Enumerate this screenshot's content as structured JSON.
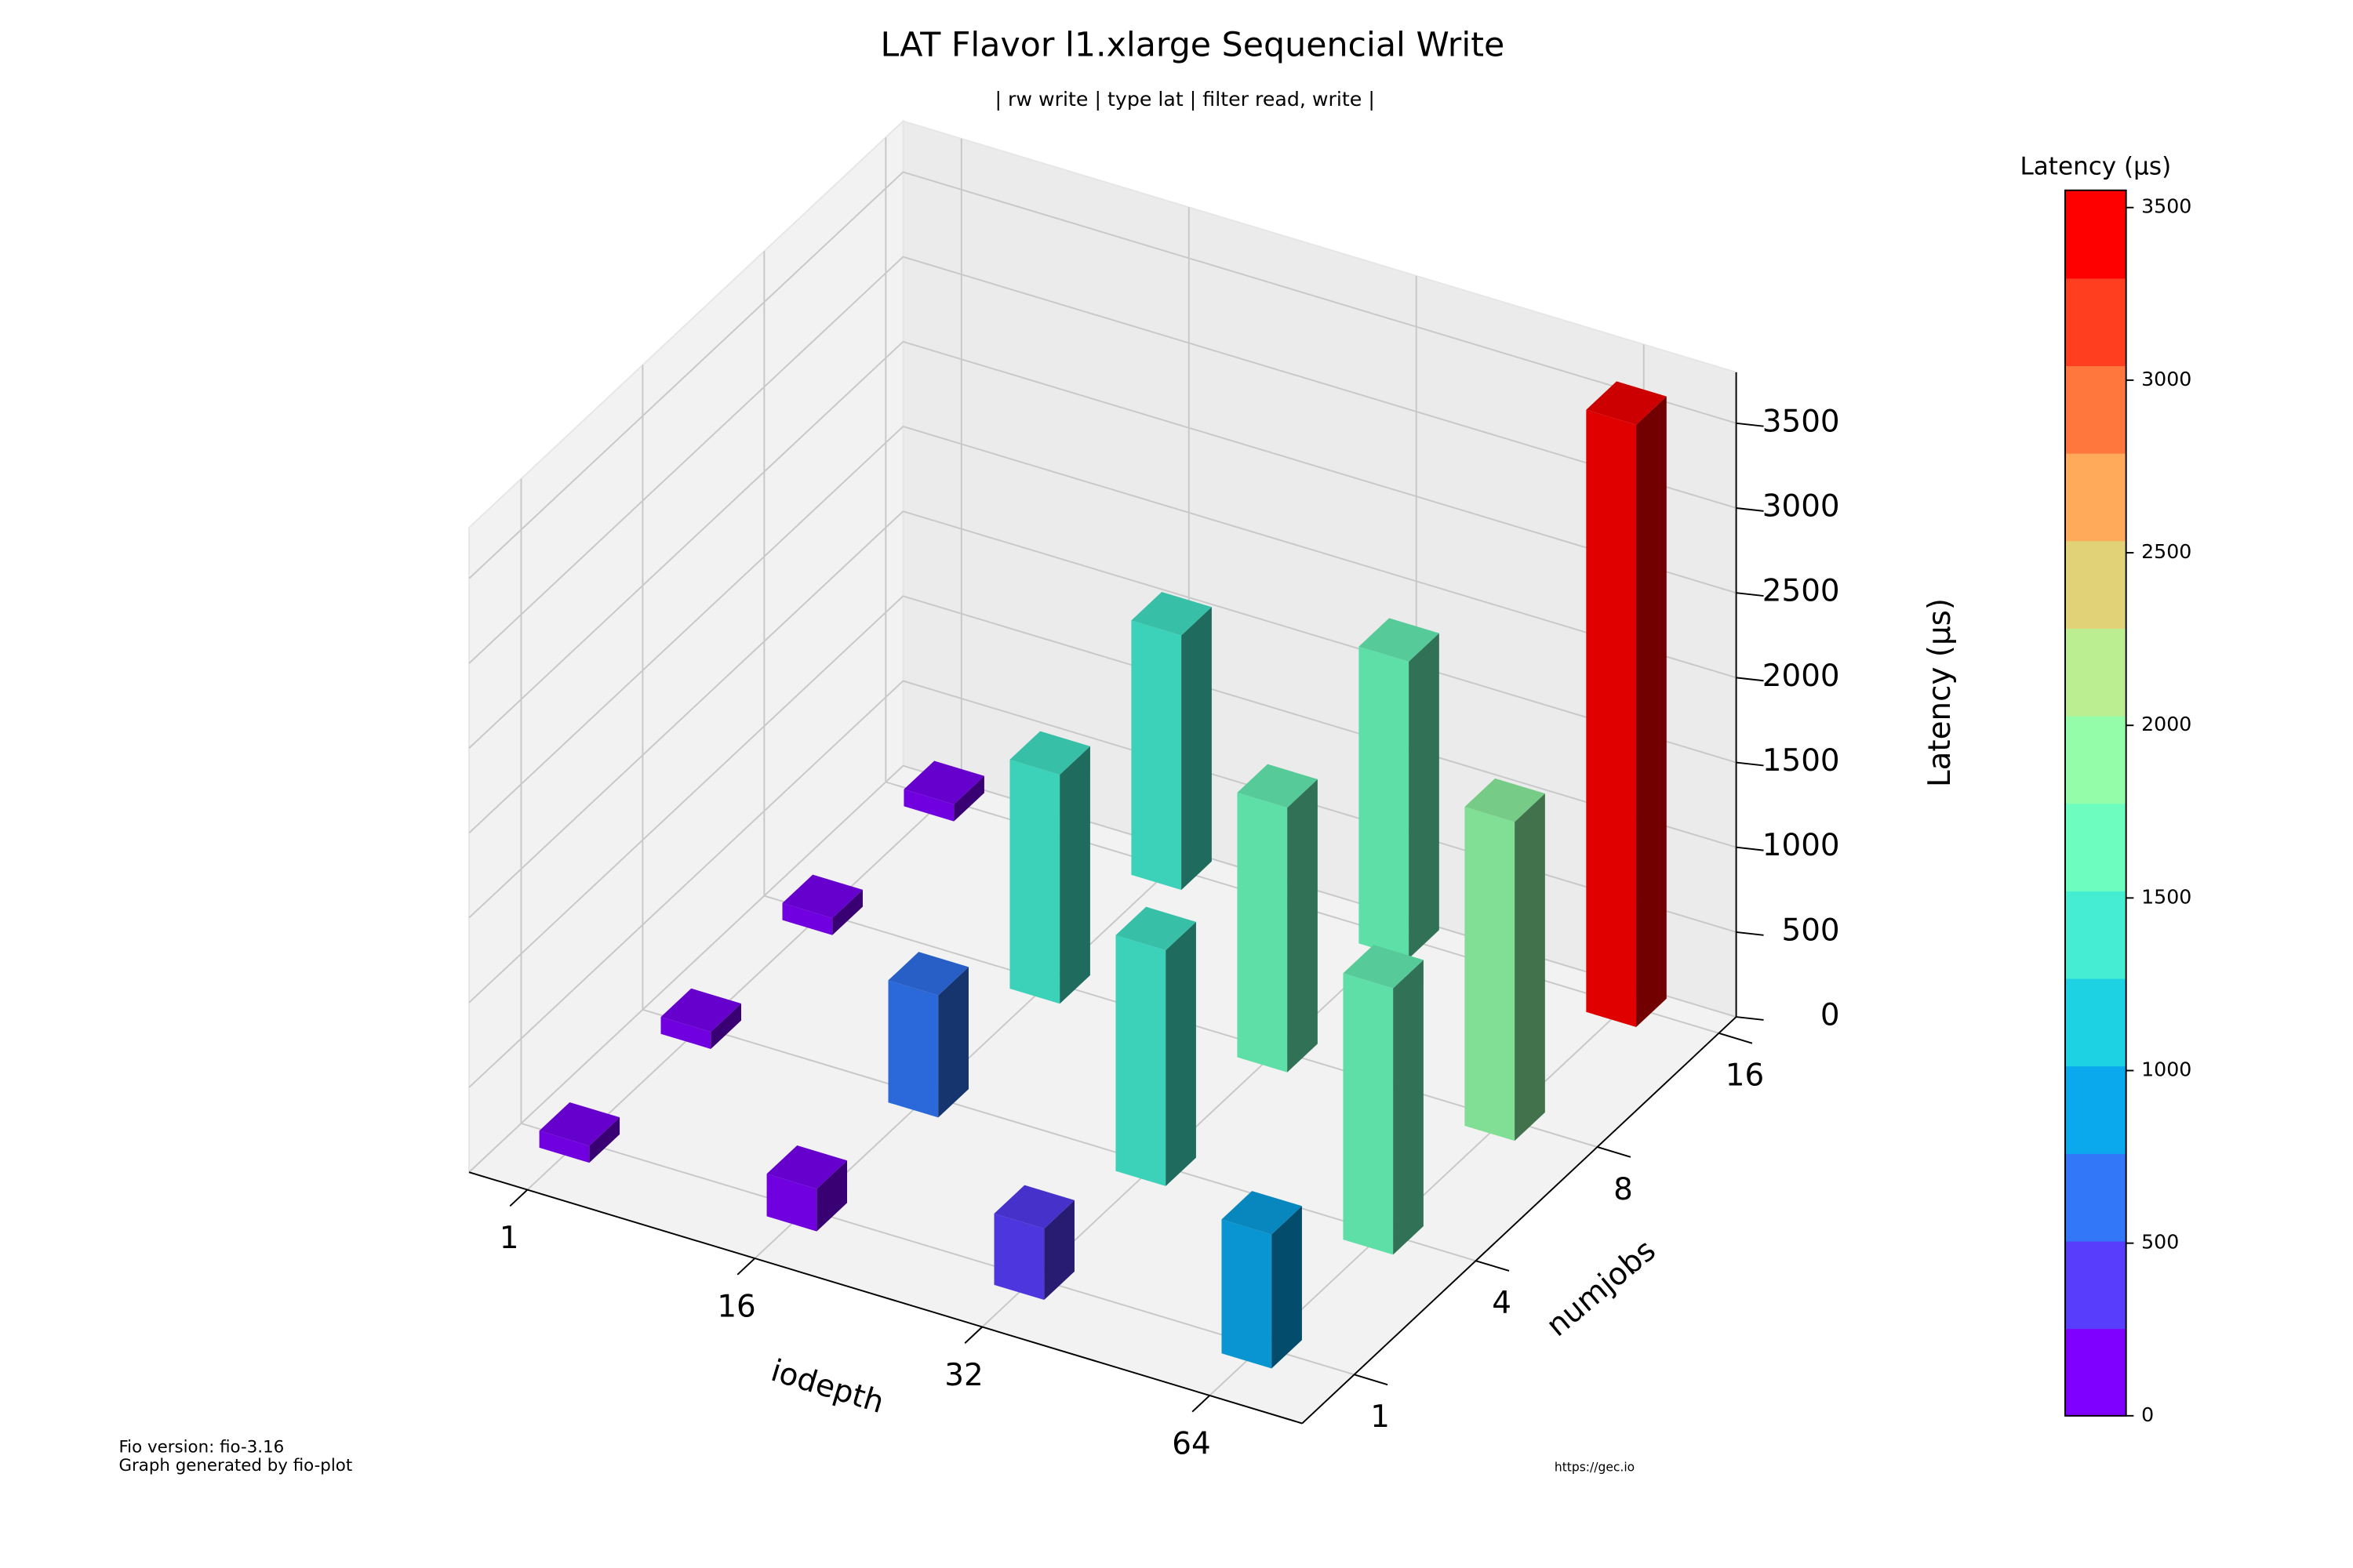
{
  "chart_data": {
    "type": "bar3d",
    "title": "LAT Flavor l1.xlarge Sequencial Write",
    "subtitle": "| rw write | type lat | filter read, write |",
    "xlabel": "iodepth",
    "ylabel": "numjobs",
    "zlabel": "Latency (µs)",
    "x": [
      1,
      16,
      32,
      64
    ],
    "y": [
      1,
      4,
      8,
      16
    ],
    "z": [
      [
        100,
        250,
        420,
        790
      ],
      [
        100,
        720,
        1390,
        1570
      ],
      [
        100,
        1350,
        1560,
        1880
      ],
      [
        100,
        1500,
        1750,
        3550
      ]
    ],
    "zlim": [
      0,
      3800
    ],
    "zticks": [
      0,
      500,
      1000,
      1500,
      2000,
      2500,
      3000,
      3500
    ],
    "colormap": "rainbow",
    "colorbar": {
      "label": "Latency (µs)",
      "lim": [
        0,
        3550
      ],
      "ticks": [
        0,
        500,
        1000,
        1500,
        2000,
        2500,
        3000,
        3500
      ],
      "levels": 14
    },
    "grid": true,
    "footer": [
      "Fio version: fio-3.16",
      "Graph generated by fio-plot"
    ],
    "source": "https://gec.io"
  }
}
